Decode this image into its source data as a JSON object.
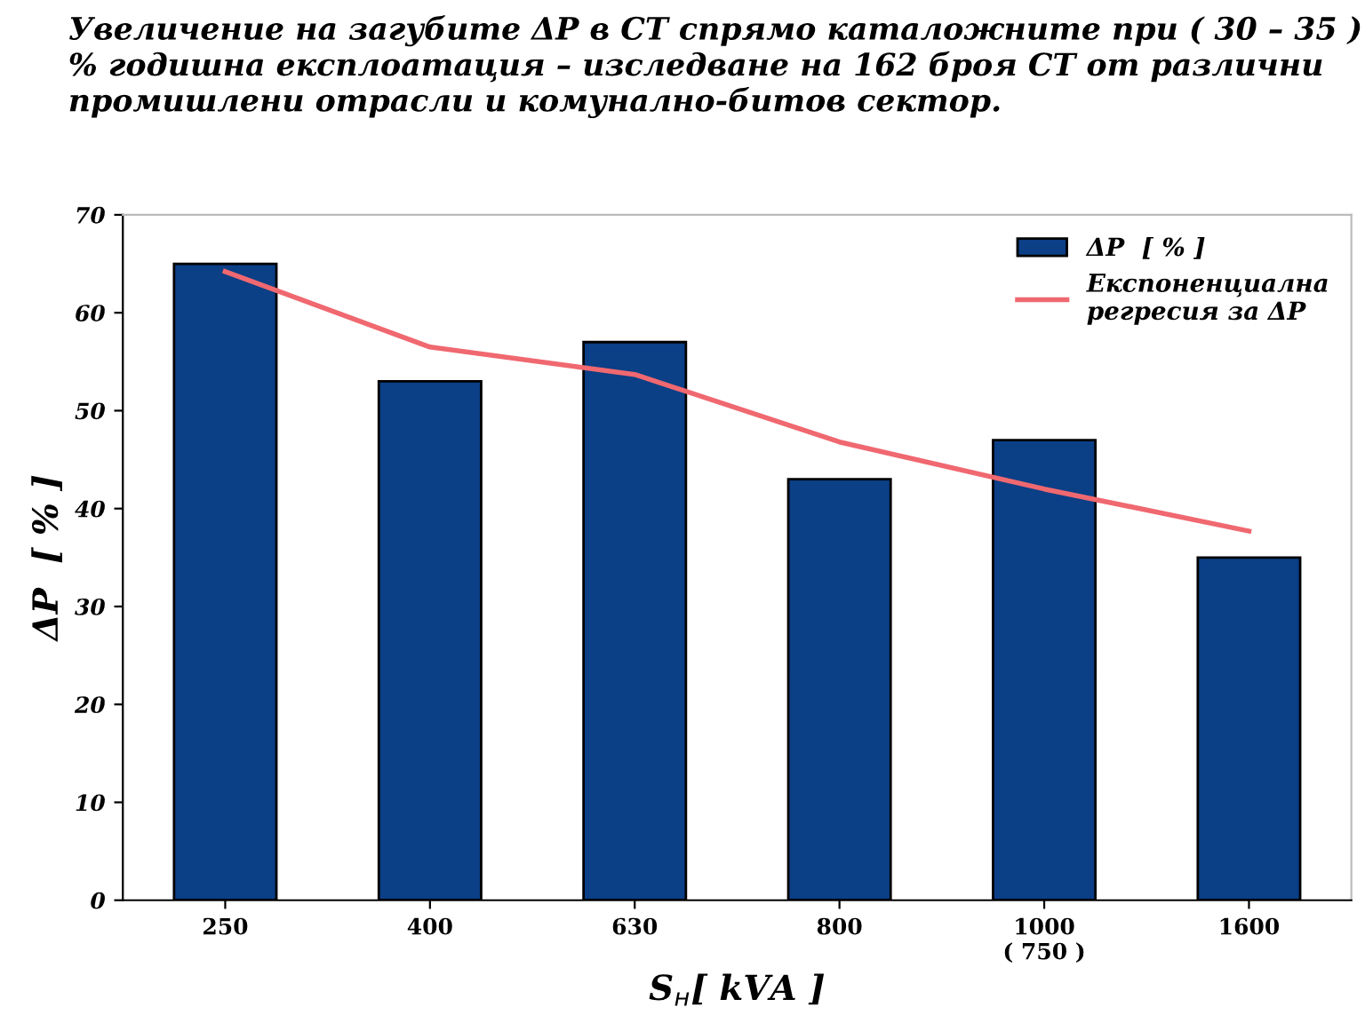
{
  "chart_data": {
    "type": "bar",
    "title": "Увеличение на загубите ΔP в СТ спрямо каталожните при ( 30 – 35 ) % годишна експлоатация – изследване на 162 броя СТ от различни промишлени отрасли и комунално-битов сектор.",
    "categories": [
      "250",
      "400",
      "630",
      "800",
      "1000\n( 750 )",
      "1600"
    ],
    "series": [
      {
        "name": "ΔP  [ % ]",
        "color": "#0b3f86",
        "values": [
          65,
          53,
          57,
          43,
          47,
          35
        ]
      },
      {
        "name": "Експоненциална\nрегресия за ΔP",
        "type": "line",
        "color": "#f06870",
        "values": [
          64.2,
          56.5,
          53.7,
          46.8,
          42,
          37.7
        ]
      }
    ],
    "xlabel": "S$_{н}$[ kVA ]",
    "ylabel": "ΔP  [ % ]",
    "ylim": [
      0,
      70
    ],
    "yticks": [
      0,
      10,
      20,
      30,
      40,
      50,
      60,
      70
    ],
    "legend": "top right",
    "grid": false
  }
}
